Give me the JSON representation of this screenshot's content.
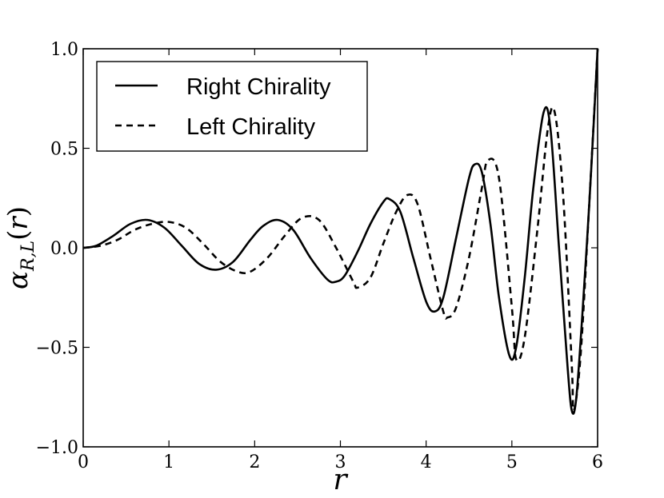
{
  "chart_data": {
    "type": "line",
    "title": "",
    "xlabel": "r",
    "ylabel": "α_{R,L}(r)",
    "xlim": [
      0,
      6
    ],
    "ylim": [
      -1.0,
      1.0
    ],
    "xticks": [
      0,
      1,
      2,
      3,
      4,
      5,
      6
    ],
    "xtick_labels": [
      "0",
      "1",
      "2",
      "3",
      "4",
      "5",
      "6"
    ],
    "yticks": [
      1.0,
      0.5,
      0.0,
      -0.5,
      -1.0
    ],
    "ytick_labels": [
      "1.0",
      "0.5",
      "0.0",
      "−0.5",
      "−1.0"
    ],
    "grid": false,
    "legend_position": "top-left",
    "series": [
      {
        "name": "Right Chirality",
        "style": "solid",
        "color": "#000000",
        "x": [
          0,
          0.15,
          0.35,
          0.55,
          0.75,
          0.95,
          1.15,
          1.35,
          1.55,
          1.75,
          1.95,
          2.1,
          2.27,
          2.45,
          2.65,
          2.85,
          2.95,
          3.05,
          3.2,
          3.35,
          3.5,
          3.57,
          3.7,
          3.85,
          4.0,
          4.1,
          4.2,
          4.35,
          4.5,
          4.57,
          4.65,
          4.75,
          4.85,
          4.97,
          5.05,
          5.15,
          5.25,
          5.37,
          5.45,
          5.55,
          5.65,
          5.7,
          5.75,
          5.82,
          5.9,
          5.97,
          6.0
        ],
        "y": [
          0.0,
          0.01,
          0.06,
          0.12,
          0.14,
          0.1,
          0.01,
          -0.08,
          -0.11,
          -0.07,
          0.04,
          0.11,
          0.14,
          0.09,
          -0.05,
          -0.16,
          -0.17,
          -0.14,
          -0.02,
          0.12,
          0.23,
          0.245,
          0.18,
          -0.05,
          -0.27,
          -0.32,
          -0.25,
          0.05,
          0.35,
          0.42,
          0.38,
          0.12,
          -0.25,
          -0.54,
          -0.5,
          -0.15,
          0.3,
          0.68,
          0.6,
          0.0,
          -0.6,
          -0.82,
          -0.76,
          -0.35,
          0.2,
          0.75,
          1.0
        ]
      },
      {
        "name": "Left Chirality",
        "style": "dashed",
        "color": "#000000",
        "x": [
          0,
          0.2,
          0.4,
          0.6,
          0.8,
          1.0,
          1.2,
          1.4,
          1.6,
          1.8,
          1.95,
          2.15,
          2.35,
          2.55,
          2.75,
          2.95,
          3.15,
          3.2,
          3.35,
          3.5,
          3.65,
          3.78,
          3.9,
          4.05,
          4.2,
          4.25,
          4.35,
          4.5,
          4.65,
          4.72,
          4.85,
          5.0,
          5.05,
          5.15,
          5.3,
          5.42,
          5.5,
          5.6,
          5.7,
          5.72,
          5.8,
          5.9,
          6.0
        ],
        "y": [
          0.0,
          0.01,
          0.04,
          0.09,
          0.12,
          0.13,
          0.1,
          0.02,
          -0.07,
          -0.12,
          -0.12,
          -0.05,
          0.06,
          0.15,
          0.14,
          0.0,
          -0.17,
          -0.2,
          -0.15,
          0.02,
          0.18,
          0.265,
          0.22,
          -0.05,
          -0.32,
          -0.35,
          -0.3,
          -0.05,
          0.3,
          0.44,
          0.35,
          -0.3,
          -0.56,
          -0.45,
          0.1,
          0.6,
          0.68,
          0.25,
          -0.6,
          -0.82,
          -0.55,
          0.2,
          1.0
        ]
      }
    ]
  },
  "colors": {
    "line": "#000000",
    "background": "#ffffff"
  }
}
